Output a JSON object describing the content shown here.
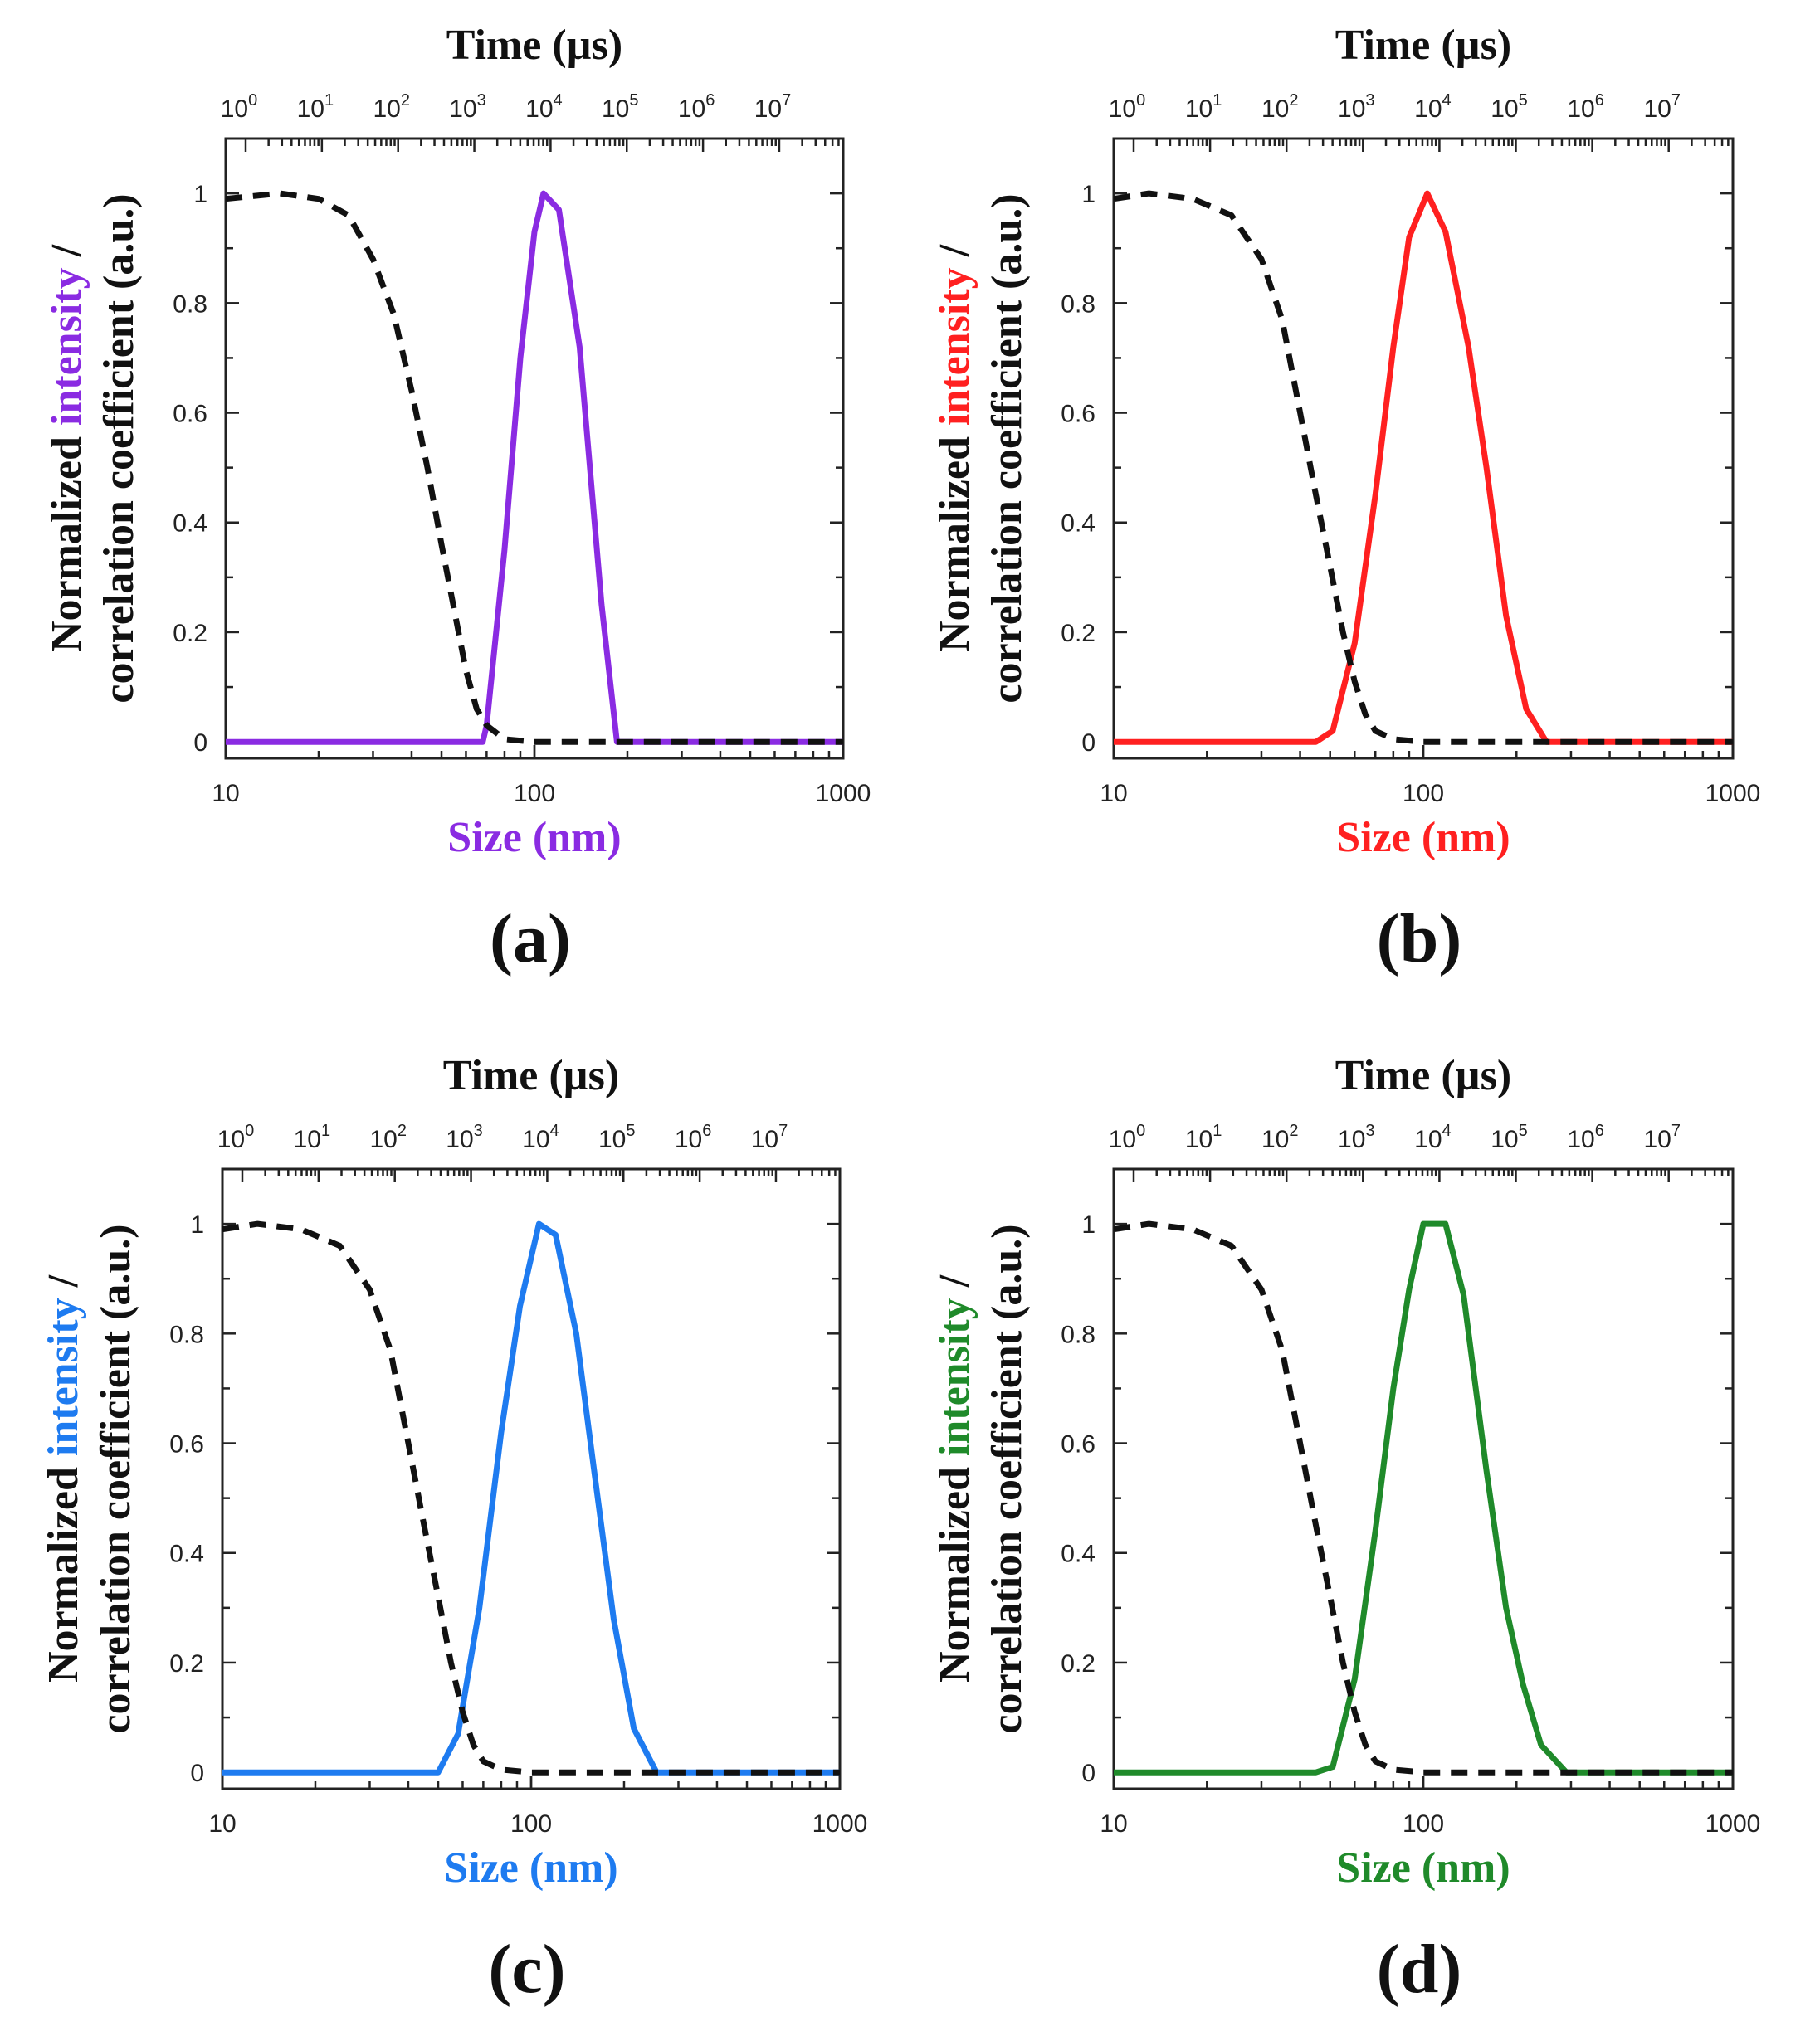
{
  "chart_data": [
    {
      "type": "line",
      "panel_label": "(a)",
      "title": "",
      "xlabel": "Size (nm)",
      "xlabel_color": "#8a2be2",
      "x2label": "Time (µs)",
      "ylabel_prefix": "Normalized ",
      "ylabel_highlight": "intensity",
      "ylabel_suffix": " /",
      "ylabel_line2": "correlation coefficient (a.u.)",
      "accent_color": "#8a2be2",
      "xscale": "log",
      "xlim": [
        10,
        1000
      ],
      "ylim": [
        -0.03,
        1.1
      ],
      "x_ticks": [
        "10",
        "100",
        "1000"
      ],
      "y_ticks": [
        "0",
        "0.2",
        "0.4",
        "0.6",
        "0.8",
        "1"
      ],
      "x2_ticks": [
        {
          "base": "10",
          "exp": "0"
        },
        {
          "base": "10",
          "exp": "1"
        },
        {
          "base": "10",
          "exp": "2"
        },
        {
          "base": "10",
          "exp": "3"
        },
        {
          "base": "10",
          "exp": "4"
        },
        {
          "base": "10",
          "exp": "5"
        },
        {
          "base": "10",
          "exp": "6"
        },
        {
          "base": "10",
          "exp": "7"
        }
      ],
      "series": [
        {
          "name": "intensity",
          "style": "solid",
          "color": "#8a2be2",
          "points": [
            [
              10,
              0
            ],
            [
              68,
              0
            ],
            [
              70,
              0.03
            ],
            [
              80,
              0.35
            ],
            [
              90,
              0.7
            ],
            [
              100,
              0.93
            ],
            [
              107,
              1.0
            ],
            [
              120,
              0.97
            ],
            [
              140,
              0.72
            ],
            [
              165,
              0.25
            ],
            [
              185,
              0
            ],
            [
              1000,
              0
            ]
          ]
        },
        {
          "name": "correlation coefficient",
          "style": "dashed",
          "color": "#111111",
          "points": [
            [
              10,
              0.99
            ],
            [
              15,
              1.0
            ],
            [
              20,
              0.99
            ],
            [
              25,
              0.96
            ],
            [
              30,
              0.88
            ],
            [
              35,
              0.78
            ],
            [
              40,
              0.64
            ],
            [
              45,
              0.5
            ],
            [
              50,
              0.36
            ],
            [
              55,
              0.24
            ],
            [
              60,
              0.13
            ],
            [
              65,
              0.06
            ],
            [
              70,
              0.03
            ],
            [
              80,
              0.005
            ],
            [
              100,
              0
            ],
            [
              1000,
              0
            ]
          ]
        }
      ]
    },
    {
      "type": "line",
      "panel_label": "(b)",
      "title": "",
      "xlabel": "Size (nm)",
      "xlabel_color": "#ff2020",
      "x2label": "Time (µs)",
      "ylabel_prefix": "Normalized ",
      "ylabel_highlight": "intensity",
      "ylabel_suffix": " /",
      "ylabel_line2": "correlation coefficient (a.u.)",
      "accent_color": "#ff2020",
      "xscale": "log",
      "xlim": [
        10,
        1000
      ],
      "ylim": [
        -0.03,
        1.1
      ],
      "x_ticks": [
        "10",
        "100",
        "1000"
      ],
      "y_ticks": [
        "0",
        "0.2",
        "0.4",
        "0.6",
        "0.8",
        "1"
      ],
      "x2_ticks": [
        {
          "base": "10",
          "exp": "0"
        },
        {
          "base": "10",
          "exp": "1"
        },
        {
          "base": "10",
          "exp": "2"
        },
        {
          "base": "10",
          "exp": "3"
        },
        {
          "base": "10",
          "exp": "4"
        },
        {
          "base": "10",
          "exp": "5"
        },
        {
          "base": "10",
          "exp": "6"
        },
        {
          "base": "10",
          "exp": "7"
        }
      ],
      "series": [
        {
          "name": "intensity",
          "style": "solid",
          "color": "#ff2020",
          "points": [
            [
              10,
              0
            ],
            [
              45,
              0
            ],
            [
              51,
              0.02
            ],
            [
              60,
              0.18
            ],
            [
              70,
              0.45
            ],
            [
              80,
              0.72
            ],
            [
              90,
              0.92
            ],
            [
              103,
              1.0
            ],
            [
              118,
              0.93
            ],
            [
              140,
              0.72
            ],
            [
              160,
              0.5
            ],
            [
              185,
              0.23
            ],
            [
              215,
              0.06
            ],
            [
              250,
              0
            ],
            [
              1000,
              0
            ]
          ]
        },
        {
          "name": "correlation coefficient",
          "style": "dashed",
          "color": "#111111",
          "points": [
            [
              10,
              0.99
            ],
            [
              13,
              1.0
            ],
            [
              18,
              0.99
            ],
            [
              24,
              0.96
            ],
            [
              30,
              0.88
            ],
            [
              35,
              0.77
            ],
            [
              40,
              0.6
            ],
            [
              45,
              0.45
            ],
            [
              50,
              0.32
            ],
            [
              55,
              0.2
            ],
            [
              60,
              0.11
            ],
            [
              65,
              0.05
            ],
            [
              70,
              0.02
            ],
            [
              80,
              0.005
            ],
            [
              100,
              0
            ],
            [
              1000,
              0
            ]
          ]
        }
      ]
    },
    {
      "type": "line",
      "panel_label": "(c)",
      "title": "",
      "xlabel": "Size (nm)",
      "xlabel_color": "#1e7bf0",
      "x2label": "Time (µs)",
      "ylabel_prefix": "Normalized ",
      "ylabel_highlight": "intensity",
      "ylabel_suffix": " /",
      "ylabel_line2": "correlation coefficient (a.u.)",
      "accent_color": "#1e7bf0",
      "xscale": "log",
      "xlim": [
        10,
        1000
      ],
      "ylim": [
        -0.03,
        1.1
      ],
      "x_ticks": [
        "10",
        "100",
        "1000"
      ],
      "y_ticks": [
        "0",
        "0.2",
        "0.4",
        "0.6",
        "0.8",
        "1"
      ],
      "x2_ticks": [
        {
          "base": "10",
          "exp": "0"
        },
        {
          "base": "10",
          "exp": "1"
        },
        {
          "base": "10",
          "exp": "2"
        },
        {
          "base": "10",
          "exp": "3"
        },
        {
          "base": "10",
          "exp": "4"
        },
        {
          "base": "10",
          "exp": "5"
        },
        {
          "base": "10",
          "exp": "6"
        },
        {
          "base": "10",
          "exp": "7"
        }
      ],
      "series": [
        {
          "name": "intensity",
          "style": "solid",
          "color": "#1e7bf0",
          "points": [
            [
              10,
              0
            ],
            [
              50,
              0
            ],
            [
              58,
              0.07
            ],
            [
              68,
              0.3
            ],
            [
              80,
              0.62
            ],
            [
              92,
              0.85
            ],
            [
              106,
              1.0
            ],
            [
              120,
              0.98
            ],
            [
              140,
              0.8
            ],
            [
              160,
              0.55
            ],
            [
              185,
              0.28
            ],
            [
              215,
              0.08
            ],
            [
              255,
              0
            ],
            [
              1000,
              0
            ]
          ]
        },
        {
          "name": "correlation coefficient",
          "style": "dashed",
          "color": "#111111",
          "points": [
            [
              10,
              0.99
            ],
            [
              13,
              1.0
            ],
            [
              18,
              0.99
            ],
            [
              24,
              0.96
            ],
            [
              30,
              0.88
            ],
            [
              35,
              0.77
            ],
            [
              40,
              0.6
            ],
            [
              45,
              0.45
            ],
            [
              50,
              0.32
            ],
            [
              55,
              0.2
            ],
            [
              60,
              0.11
            ],
            [
              65,
              0.05
            ],
            [
              70,
              0.02
            ],
            [
              80,
              0.005
            ],
            [
              100,
              0
            ],
            [
              1000,
              0
            ]
          ]
        }
      ]
    },
    {
      "type": "line",
      "panel_label": "(d)",
      "title": "",
      "xlabel": "Size (nm)",
      "xlabel_color": "#1f8a2a",
      "x2label": "Time (µs)",
      "ylabel_prefix": "Normalized ",
      "ylabel_highlight": "intensity",
      "ylabel_suffix": " /",
      "ylabel_line2": "correlation coefficient (a.u.)",
      "accent_color": "#1f8a2a",
      "xscale": "log",
      "xlim": [
        10,
        1000
      ],
      "ylim": [
        -0.03,
        1.1
      ],
      "x_ticks": [
        "10",
        "100",
        "1000"
      ],
      "y_ticks": [
        "0",
        "0.2",
        "0.4",
        "0.6",
        "0.8",
        "1"
      ],
      "x2_ticks": [
        {
          "base": "10",
          "exp": "0"
        },
        {
          "base": "10",
          "exp": "1"
        },
        {
          "base": "10",
          "exp": "2"
        },
        {
          "base": "10",
          "exp": "3"
        },
        {
          "base": "10",
          "exp": "4"
        },
        {
          "base": "10",
          "exp": "5"
        },
        {
          "base": "10",
          "exp": "6"
        },
        {
          "base": "10",
          "exp": "7"
        }
      ],
      "series": [
        {
          "name": "intensity",
          "style": "solid",
          "color": "#1f8a2a",
          "points": [
            [
              10,
              0
            ],
            [
              45,
              0
            ],
            [
              51,
              0.01
            ],
            [
              60,
              0.17
            ],
            [
              70,
              0.44
            ],
            [
              80,
              0.7
            ],
            [
              90,
              0.88
            ],
            [
              100,
              1.0
            ],
            [
              118,
              1.0
            ],
            [
              135,
              0.87
            ],
            [
              160,
              0.55
            ],
            [
              185,
              0.3
            ],
            [
              210,
              0.16
            ],
            [
              240,
              0.05
            ],
            [
              290,
              0
            ],
            [
              1000,
              0
            ]
          ]
        },
        {
          "name": "correlation coefficient",
          "style": "dashed",
          "color": "#111111",
          "points": [
            [
              10,
              0.99
            ],
            [
              13,
              1.0
            ],
            [
              18,
              0.99
            ],
            [
              24,
              0.96
            ],
            [
              30,
              0.88
            ],
            [
              35,
              0.77
            ],
            [
              40,
              0.6
            ],
            [
              45,
              0.45
            ],
            [
              50,
              0.32
            ],
            [
              55,
              0.2
            ],
            [
              60,
              0.11
            ],
            [
              65,
              0.05
            ],
            [
              70,
              0.02
            ],
            [
              80,
              0.005
            ],
            [
              100,
              0
            ],
            [
              1000,
              0
            ]
          ]
        }
      ]
    }
  ]
}
